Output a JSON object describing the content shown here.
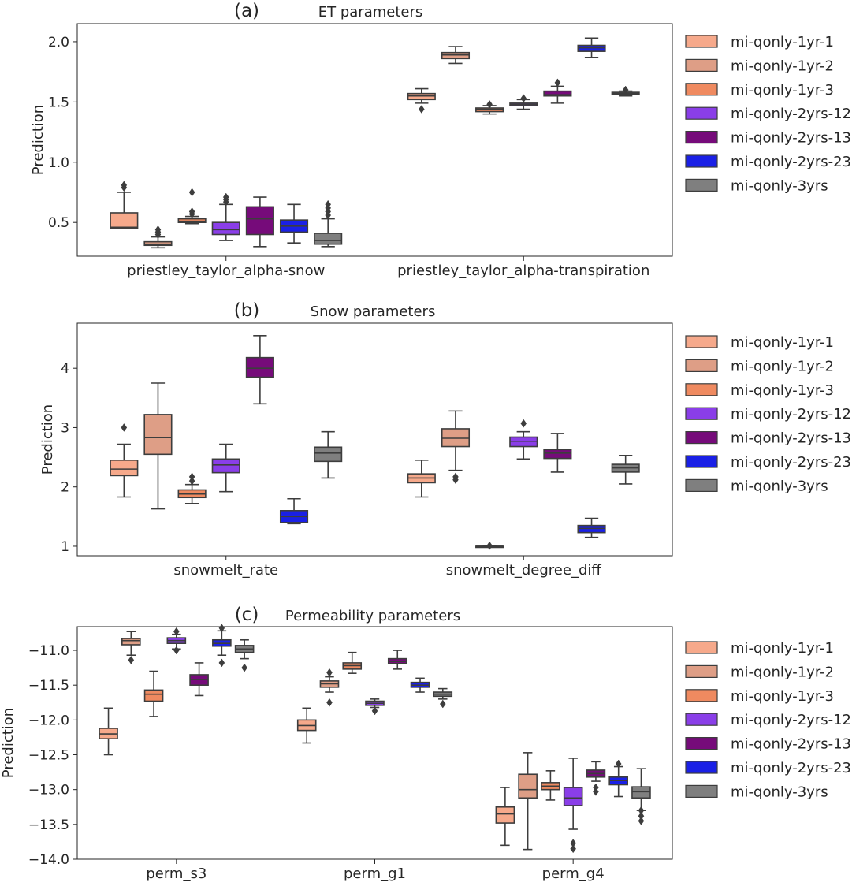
{
  "series_names": [
    "mi-qonly-1yr-1",
    "mi-qonly-1yr-2",
    "mi-qonly-1yr-3",
    "mi-qonly-2yrs-12",
    "mi-qonly-2yrs-13",
    "mi-qonly-2yrs-23",
    "mi-qonly-3yrs"
  ],
  "series_colors": [
    "#f6a98b",
    "#de9e86",
    "#ef8a60",
    "#8a3ee8",
    "#760b7a",
    "#1a20e6",
    "#7f7f7f"
  ],
  "chart_data": [
    {
      "type": "box",
      "letter": "(a)",
      "title": "ET parameters",
      "ylabel": "Prediction",
      "ylim": [
        0.22,
        2.15
      ],
      "yticks": [
        0.5,
        1.0,
        1.5,
        2.0
      ],
      "ytick_labels": [
        "0.5",
        "1.0",
        "1.5",
        "2.0"
      ],
      "categories": [
        "priestley_taylor_alpha-snow",
        "priestley_taylor_alpha-transpiration"
      ],
      "boxes": [
        [
          {
            "wlo": 0.45,
            "q1": 0.45,
            "med": 0.46,
            "q3": 0.58,
            "whi": 0.75,
            "fliers": [
              0.79,
              0.81
            ]
          },
          {
            "wlo": 0.29,
            "q1": 0.31,
            "med": 0.32,
            "q3": 0.34,
            "whi": 0.38,
            "fliers": [
              0.4,
              0.42,
              0.44
            ]
          },
          {
            "wlo": 0.49,
            "q1": 0.5,
            "med": 0.51,
            "q3": 0.53,
            "whi": 0.55,
            "fliers": [
              0.57,
              0.59,
              0.75
            ]
          },
          {
            "wlo": 0.35,
            "q1": 0.4,
            "med": 0.44,
            "q3": 0.5,
            "whi": 0.65,
            "fliers": [
              0.67,
              0.69,
              0.71
            ]
          },
          {
            "wlo": 0.3,
            "q1": 0.4,
            "med": 0.53,
            "q3": 0.63,
            "whi": 0.71,
            "fliers": []
          },
          {
            "wlo": 0.33,
            "q1": 0.42,
            "med": 0.47,
            "q3": 0.52,
            "whi": 0.65,
            "fliers": []
          },
          {
            "wlo": 0.3,
            "q1": 0.32,
            "med": 0.35,
            "q3": 0.41,
            "whi": 0.53,
            "fliers": [
              0.56,
              0.59,
              0.62,
              0.65
            ]
          }
        ],
        [
          {
            "wlo": 1.49,
            "q1": 1.52,
            "med": 1.55,
            "q3": 1.57,
            "whi": 1.61,
            "fliers": [
              1.44
            ]
          },
          {
            "wlo": 1.82,
            "q1": 1.86,
            "med": 1.89,
            "q3": 1.91,
            "whi": 1.96,
            "fliers": []
          },
          {
            "wlo": 1.4,
            "q1": 1.42,
            "med": 1.44,
            "q3": 1.45,
            "whi": 1.47,
            "fliers": [
              1.48
            ]
          },
          {
            "wlo": 1.44,
            "q1": 1.47,
            "med": 1.48,
            "q3": 1.49,
            "whi": 1.52,
            "fliers": [
              1.53
            ]
          },
          {
            "wlo": 1.49,
            "q1": 1.55,
            "med": 1.56,
            "q3": 1.59,
            "whi": 1.63,
            "fliers": [
              1.66
            ]
          },
          {
            "wlo": 1.87,
            "q1": 1.92,
            "med": 1.95,
            "q3": 1.97,
            "whi": 2.03,
            "fliers": []
          },
          {
            "wlo": 1.55,
            "q1": 1.56,
            "med": 1.57,
            "q3": 1.58,
            "whi": 1.59,
            "fliers": [
              1.6
            ]
          }
        ]
      ]
    },
    {
      "type": "box",
      "letter": "(b)",
      "title": "Snow parameters",
      "ylabel": "Prediction",
      "ylim": [
        0.84,
        4.76
      ],
      "yticks": [
        1,
        2,
        3,
        4
      ],
      "ytick_labels": [
        "1",
        "2",
        "3",
        "4"
      ],
      "categories": [
        "snowmelt_rate",
        "snowmelt_degree_diff"
      ],
      "boxes": [
        [
          {
            "wlo": 1.83,
            "q1": 2.19,
            "med": 2.3,
            "q3": 2.45,
            "whi": 2.72,
            "fliers": [
              3.0
            ]
          },
          {
            "wlo": 1.63,
            "q1": 2.55,
            "med": 2.83,
            "q3": 3.22,
            "whi": 3.75,
            "fliers": []
          },
          {
            "wlo": 1.72,
            "q1": 1.82,
            "med": 1.88,
            "q3": 1.95,
            "whi": 2.04,
            "fliers": [
              2.1,
              2.17
            ]
          },
          {
            "wlo": 1.92,
            "q1": 2.24,
            "med": 2.37,
            "q3": 2.47,
            "whi": 2.72,
            "fliers": []
          },
          {
            "wlo": 3.4,
            "q1": 3.85,
            "med": 4.0,
            "q3": 4.18,
            "whi": 4.55,
            "fliers": []
          },
          {
            "wlo": 1.38,
            "q1": 1.4,
            "med": 1.5,
            "q3": 1.6,
            "whi": 1.8,
            "fliers": []
          },
          {
            "wlo": 2.15,
            "q1": 2.43,
            "med": 2.57,
            "q3": 2.67,
            "whi": 2.93,
            "fliers": []
          }
        ],
        [
          {
            "wlo": 1.83,
            "q1": 2.07,
            "med": 2.15,
            "q3": 2.22,
            "whi": 2.45,
            "fliers": []
          },
          {
            "wlo": 2.28,
            "q1": 2.68,
            "med": 2.82,
            "q3": 2.98,
            "whi": 3.28,
            "fliers": [
              2.12,
              2.17
            ]
          },
          {
            "wlo": 1.0,
            "q1": 1.0,
            "med": 1.0,
            "q3": 1.0,
            "whi": 1.0,
            "fliers": [
              1.01
            ]
          },
          {
            "wlo": 2.47,
            "q1": 2.68,
            "med": 2.77,
            "q3": 2.84,
            "whi": 2.93,
            "fliers": [
              3.07
            ]
          },
          {
            "wlo": 2.25,
            "q1": 2.48,
            "med": 2.57,
            "q3": 2.63,
            "whi": 2.9,
            "fliers": []
          },
          {
            "wlo": 1.15,
            "q1": 1.23,
            "med": 1.3,
            "q3": 1.35,
            "whi": 1.47,
            "fliers": []
          },
          {
            "wlo": 2.05,
            "q1": 2.25,
            "med": 2.32,
            "q3": 2.38,
            "whi": 2.53,
            "fliers": []
          }
        ]
      ]
    },
    {
      "type": "box",
      "letter": "(c)",
      "title": "Permeability parameters",
      "ylabel": "Prediction",
      "ylim": [
        -14.0,
        -10.66
      ],
      "yticks": [
        -14.0,
        -13.5,
        -13.0,
        -12.5,
        -12.0,
        -11.5,
        -11.0
      ],
      "ytick_labels": [
        "−14.0",
        "−13.5",
        "−13.0",
        "−12.5",
        "−12.0",
        "−11.5",
        "−11.0"
      ],
      "categories": [
        "perm_s3",
        "perm_g1",
        "perm_g4"
      ],
      "boxes": [
        [
          {
            "wlo": -12.5,
            "q1": -12.27,
            "med": -12.2,
            "q3": -12.12,
            "whi": -11.83,
            "fliers": []
          },
          {
            "wlo": -11.07,
            "q1": -10.92,
            "med": -10.86,
            "q3": -10.83,
            "whi": -10.73,
            "fliers": [
              -11.14
            ]
          },
          {
            "wlo": -11.95,
            "q1": -11.73,
            "med": -11.63,
            "q3": -11.57,
            "whi": -11.3,
            "fliers": []
          },
          {
            "wlo": -10.98,
            "q1": -10.9,
            "med": -10.86,
            "q3": -10.82,
            "whi": -10.77,
            "fliers": [
              -10.73,
              -11.0
            ]
          },
          {
            "wlo": -11.65,
            "q1": -11.5,
            "med": -11.42,
            "q3": -11.35,
            "whi": -11.18,
            "fliers": []
          },
          {
            "wlo": -11.07,
            "q1": -10.94,
            "med": -10.9,
            "q3": -10.85,
            "whi": -10.72,
            "fliers": [
              -10.68,
              -11.18
            ]
          },
          {
            "wlo": -11.12,
            "q1": -11.03,
            "med": -10.98,
            "q3": -10.93,
            "whi": -10.85,
            "fliers": [
              -11.25
            ]
          }
        ],
        [
          {
            "wlo": -12.33,
            "q1": -12.15,
            "med": -12.08,
            "q3": -12.0,
            "whi": -11.83,
            "fliers": []
          },
          {
            "wlo": -11.6,
            "q1": -11.53,
            "med": -11.48,
            "q3": -11.44,
            "whi": -11.38,
            "fliers": [
              -11.32,
              -11.75
            ]
          },
          {
            "wlo": -11.33,
            "q1": -11.27,
            "med": -11.22,
            "q3": -11.18,
            "whi": -11.03,
            "fliers": []
          },
          {
            "wlo": -11.82,
            "q1": -11.79,
            "med": -11.76,
            "q3": -11.73,
            "whi": -11.7,
            "fliers": [
              -11.87
            ]
          },
          {
            "wlo": -11.27,
            "q1": -11.19,
            "med": -11.16,
            "q3": -11.12,
            "whi": -11.0,
            "fliers": []
          },
          {
            "wlo": -11.6,
            "q1": -11.53,
            "med": -11.5,
            "q3": -11.46,
            "whi": -11.4,
            "fliers": []
          },
          {
            "wlo": -11.7,
            "q1": -11.66,
            "med": -11.63,
            "q3": -11.6,
            "whi": -11.55,
            "fliers": [
              -11.77
            ]
          }
        ],
        [
          {
            "wlo": -13.8,
            "q1": -13.48,
            "med": -13.35,
            "q3": -13.25,
            "whi": -12.97,
            "fliers": []
          },
          {
            "wlo": -13.86,
            "q1": -13.12,
            "med": -13.0,
            "q3": -12.78,
            "whi": -12.47,
            "fliers": []
          },
          {
            "wlo": -13.15,
            "q1": -13.0,
            "med": -12.95,
            "q3": -12.9,
            "whi": -12.73,
            "fliers": []
          },
          {
            "wlo": -13.57,
            "q1": -13.23,
            "med": -13.12,
            "q3": -12.97,
            "whi": -12.55,
            "fliers": [
              -13.77,
              -13.85
            ]
          },
          {
            "wlo": -12.88,
            "q1": -12.82,
            "med": -12.77,
            "q3": -12.72,
            "whi": -12.6,
            "fliers": [
              -12.97,
              -13.03
            ]
          },
          {
            "wlo": -13.1,
            "q1": -12.93,
            "med": -12.87,
            "q3": -12.82,
            "whi": -12.67,
            "fliers": [
              -12.63
            ]
          },
          {
            "wlo": -13.3,
            "q1": -13.12,
            "med": -13.03,
            "q3": -12.96,
            "whi": -12.7,
            "fliers": [
              -13.3,
              -13.38,
              -13.45
            ]
          }
        ]
      ]
    }
  ]
}
